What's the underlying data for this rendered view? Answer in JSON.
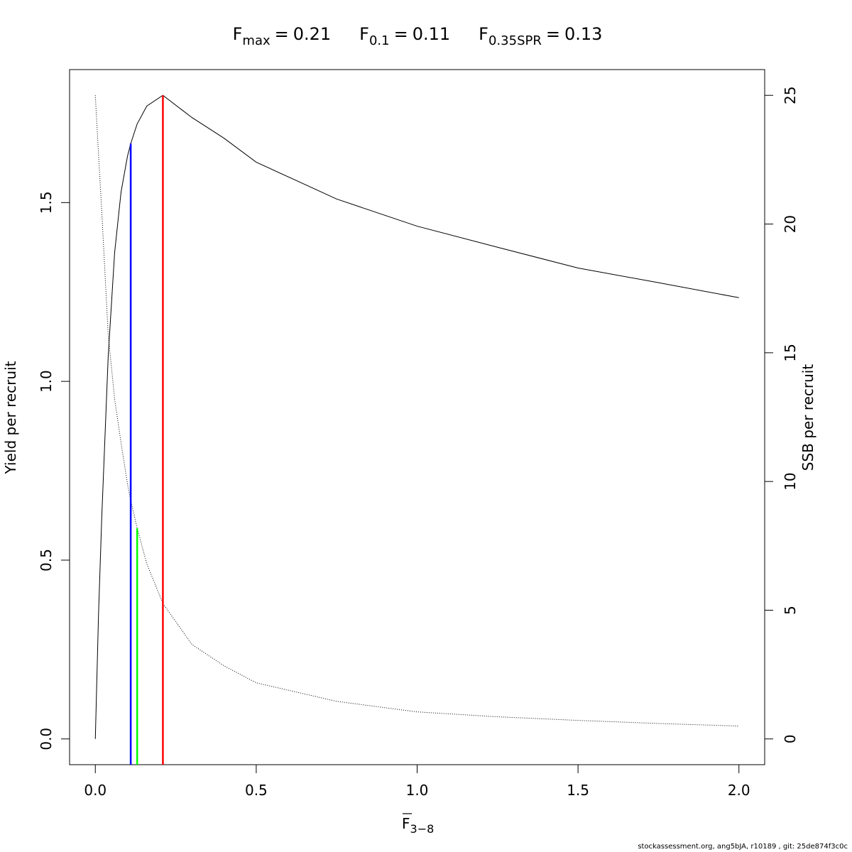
{
  "chart_data": {
    "type": "line",
    "title": [
      {
        "symbol": "F",
        "subscript": "max",
        "relation": "=",
        "value": 0.21,
        "color": "#ff0000",
        "line_top": 1.8
      },
      {
        "symbol": "F",
        "subscript": "0.1",
        "relation": "=",
        "value": 0.11,
        "color": "#0000ff",
        "line_top": 1.665
      },
      {
        "symbol": "F",
        "subscript": "0.35SPR",
        "relation": "=",
        "value": 0.13,
        "color": "#00ff00",
        "line_top": 0.589
      }
    ],
    "x_label": {
      "symbol": "F",
      "subscript": "3−8"
    },
    "y_label": "Yield per recruit",
    "y2_label": "SSB per recruit",
    "x": [
      0,
      0.01,
      0.02,
      0.04,
      0.06,
      0.08,
      0.1,
      0.11,
      0.13,
      0.16,
      0.21,
      0.3,
      0.4,
      0.5,
      0.75,
      1,
      1.25,
      1.5,
      1.75,
      2
    ],
    "series": [
      {
        "name": "Yield per recruit",
        "color": "#000000",
        "dash": "solid",
        "values": [
          0,
          0.35,
          0.62,
          1.07,
          1.36,
          1.53,
          1.63,
          1.665,
          1.72,
          1.77,
          1.8,
          1.738,
          1.68,
          1.613,
          1.51,
          1.434,
          1.375,
          1.317,
          1.276,
          1.234
        ]
      },
      {
        "name": "SSB per recruit",
        "color": "#000000",
        "dash": "dotted",
        "axis": "y2",
        "values": [
          25,
          22.7,
          20.5,
          15.7,
          13.2,
          11.5,
          9.9,
          9.26,
          8.19,
          6.8,
          5.26,
          3.67,
          2.84,
          2.18,
          1.46,
          1.05,
          0.86,
          0.72,
          0.6,
          0.5
        ]
      }
    ],
    "xlim": [
      -0.08,
      2.08
    ],
    "xticks": [
      {
        "value": 0,
        "label": "0.0"
      },
      {
        "value": 0.5,
        "label": "0.5"
      },
      {
        "value": 1,
        "label": "1.0"
      },
      {
        "value": 1.5,
        "label": "1.5"
      },
      {
        "value": 2,
        "label": "2.0"
      }
    ],
    "ylim": [
      -0.072,
      1.872
    ],
    "yticks": [
      {
        "value": 0,
        "label": "0.0"
      },
      {
        "value": 0.5,
        "label": "0.5"
      },
      {
        "value": 1,
        "label": "1.0"
      },
      {
        "value": 1.5,
        "label": "1.5"
      }
    ],
    "y2lim": [
      -1,
      26
    ],
    "y2ticks": [
      0,
      5,
      10,
      15,
      20,
      25
    ],
    "footer": "stockassessment.org, ang5bJA, r10189 , git: 25de874f3c0c"
  }
}
